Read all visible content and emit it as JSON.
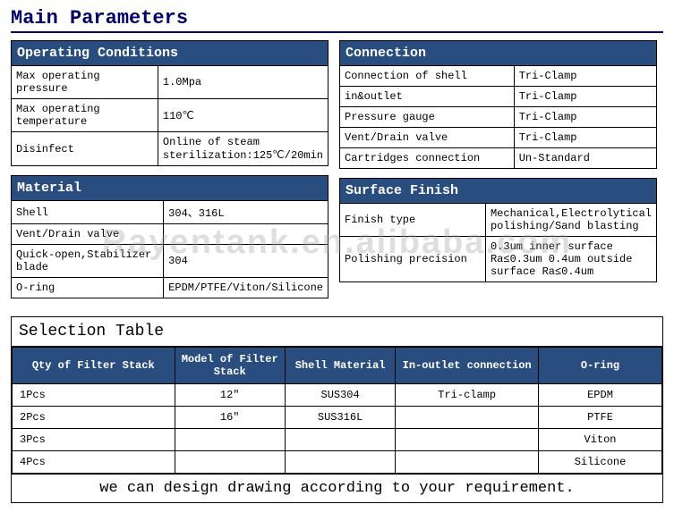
{
  "title": "Main Parameters",
  "colors": {
    "header_bg": "#2a4d7f",
    "header_text": "#ffffff",
    "title_color": "#000066",
    "border": "#000000",
    "bg": "#ffffff"
  },
  "operating": {
    "header": "Operating Conditions",
    "rows": [
      {
        "label": "Max operating pressure",
        "value": "1.0Mpa"
      },
      {
        "label": "Max operating temperature",
        "value": "110℃"
      },
      {
        "label": "Disinfect",
        "value": "Online of steam sterilization:125℃/20min"
      }
    ]
  },
  "material": {
    "header": "Material",
    "rows": [
      {
        "label": "Shell",
        "value": "304、316L"
      },
      {
        "label": "Vent/Drain valve",
        "value": ""
      },
      {
        "label": "Quick-open,Stabilizer blade",
        "value": "304"
      },
      {
        "label": "O-ring",
        "value": "EPDM/PTFE/Viton/Silicone"
      }
    ]
  },
  "connection": {
    "header": "Connection",
    "rows": [
      {
        "label": "Connection of shell",
        "value": "Tri-Clamp"
      },
      {
        "label": "in&outlet",
        "value": "Tri-Clamp"
      },
      {
        "label": "Pressure gauge",
        "value": "Tri-Clamp"
      },
      {
        "label": "Vent/Drain valve",
        "value": "Tri-Clamp"
      },
      {
        "label": "Cartridges connection",
        "value": "Un-Standard"
      }
    ]
  },
  "surface": {
    "header": "Surface Finish",
    "rows": [
      {
        "label": "Finish type",
        "value": "Mechanical,Electrolytical polishing/Sand blasting"
      },
      {
        "label": "Polishing precision",
        "value": "0.3um inner surface Ra≤0.3um 0.4um outside surface Ra≤0.4um"
      }
    ]
  },
  "selection": {
    "title": "Selection Table",
    "columns": [
      "Qty of Filter Stack",
      "Model of Filter Stack",
      "Shell Material",
      "In-outlet connection",
      "O-ring"
    ],
    "rows": [
      [
        "1Pcs",
        "12″",
        "SUS304",
        "Tri-clamp",
        "EPDM"
      ],
      [
        "2Pcs",
        "16″",
        "SUS316L",
        "",
        "PTFE"
      ],
      [
        "3Pcs",
        "",
        "",
        "",
        "Viton"
      ],
      [
        "4Pcs",
        "",
        "",
        "",
        "Silicone"
      ]
    ],
    "col_widths": [
      "25%",
      "17%",
      "17%",
      "22%",
      "19%"
    ],
    "footer": "we can design drawing according to your requirement."
  },
  "watermark": "Rayentank.en.alibaba.com"
}
